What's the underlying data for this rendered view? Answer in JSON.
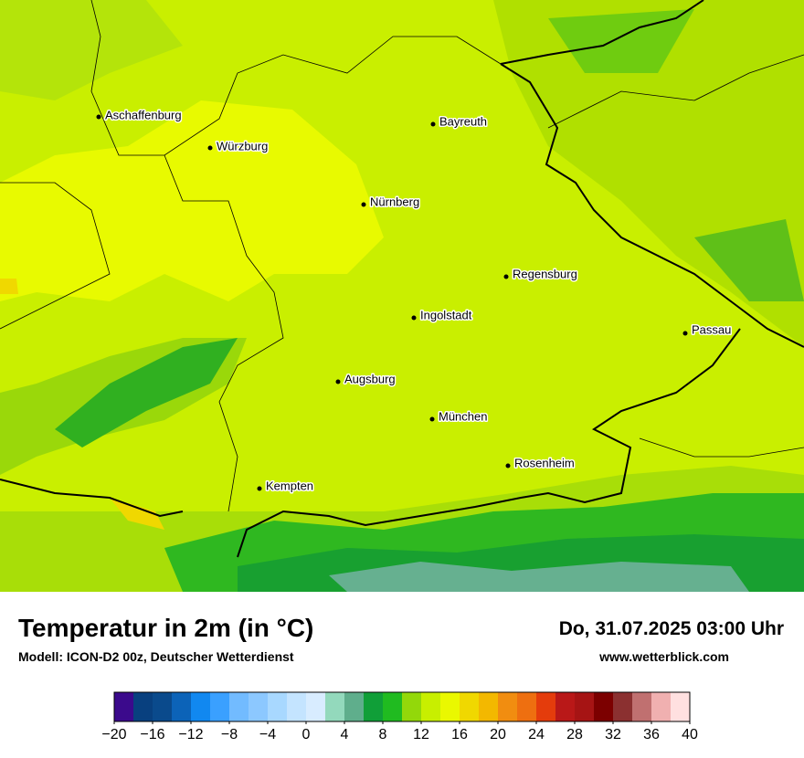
{
  "map": {
    "cities": [
      "Aschaffenburg",
      "Würzburg",
      "Bayreuth",
      "Nürnberg",
      "Regensburg",
      "Ingolstadt",
      "Passau",
      "Augsburg",
      "München",
      "Rosenheim",
      "Kempten"
    ]
  },
  "footer": {
    "title": "Temperatur in 2m (in °C)",
    "subtitle": "Modell: ICON-D2 00z, Deutscher Wetterdienst",
    "datetime": "Do, 31.07.2025 03:00 Uhr",
    "source": "www.wetterblick.com"
  },
  "colorbar": {
    "range": [
      -20,
      40
    ],
    "colors": [
      "#3b0a8c",
      "#08407f",
      "#0a4a8c",
      "#0c63b8",
      "#1188f0",
      "#3aa0ff",
      "#72bbff",
      "#8cc8ff",
      "#a8d8ff",
      "#c4e4ff",
      "#d8ecff",
      "#93d9bc",
      "#5fae8c",
      "#109f38",
      "#20bb20",
      "#93d80a",
      "#c8ef00",
      "#eaf800",
      "#f0d800",
      "#f3b800",
      "#f18d10",
      "#ee6f10",
      "#e43c0c",
      "#b91818",
      "#a61414",
      "#7c0000",
      "#8b3030",
      "#c07070",
      "#f0b0b0",
      "#ffe0e0"
    ],
    "ticks": [
      {
        "value": -20,
        "label": "−20"
      },
      {
        "value": -16,
        "label": "−16"
      },
      {
        "value": -12,
        "label": "−12"
      },
      {
        "value": -8,
        "label": "−8"
      },
      {
        "value": -4,
        "label": "−4"
      },
      0,
      4,
      8,
      12,
      16,
      20,
      24,
      28,
      32,
      36,
      40
    ]
  }
}
